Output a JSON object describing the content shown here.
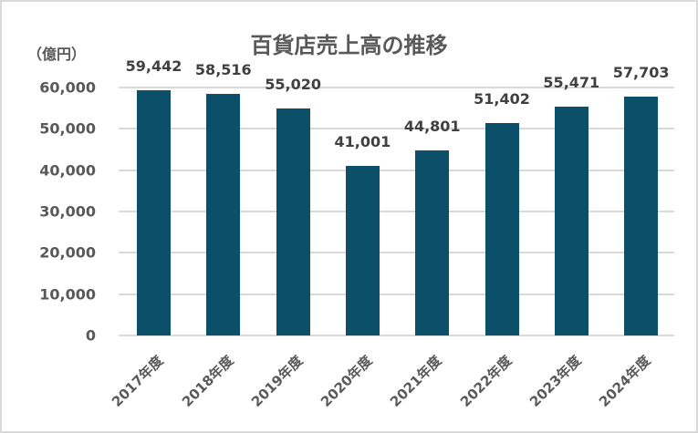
{
  "chart_data": {
    "type": "bar",
    "title": "百貨店売上高の推移",
    "ylabel": "（億円）",
    "xlabel": "",
    "categories": [
      "2017年度",
      "2018年度",
      "2019年度",
      "2020年度",
      "2021年度",
      "2022年度",
      "2023年度",
      "2024年度"
    ],
    "values": [
      59442,
      58516,
      55020,
      41001,
      44801,
      51402,
      55471,
      57703
    ],
    "data_labels": [
      "59,442",
      "58,516",
      "55,020",
      "41,001",
      "44,801",
      "51,402",
      "55,471",
      "57,703"
    ],
    "ylim": [
      0,
      60000
    ],
    "yticks": [
      "0",
      "10,000",
      "20,000",
      "30,000",
      "40,000",
      "50,000",
      "60,000"
    ],
    "grid": true,
    "legend": "none",
    "bar_color": "#0b4f69"
  }
}
